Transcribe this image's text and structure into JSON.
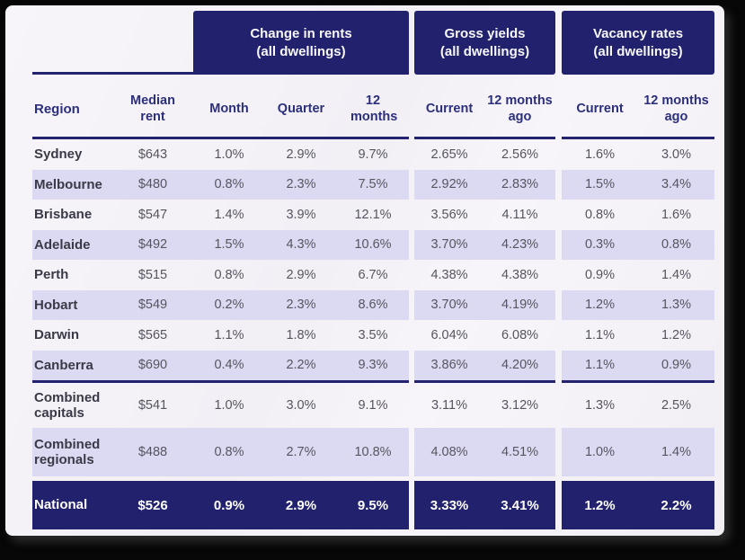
{
  "chart_data": {
    "type": "table",
    "column_groups": [
      {
        "title": "Change in rents",
        "subtitle": "(all dwellings)"
      },
      {
        "title": "Gross yields",
        "subtitle": "(all dwellings)"
      },
      {
        "title": "Vacancy rates",
        "subtitle": "(all dwellings)"
      }
    ],
    "columns": [
      "Region",
      "Median rent",
      "Month",
      "Quarter",
      "12 months",
      "Current",
      "12 months ago",
      "Current",
      "12 months ago"
    ],
    "rows": [
      {
        "region": "Sydney",
        "values": [
          "$643",
          "1.0%",
          "2.9%",
          "9.7%",
          "2.65%",
          "2.56%",
          "1.6%",
          "3.0%"
        ]
      },
      {
        "region": "Melbourne",
        "values": [
          "$480",
          "0.8%",
          "2.3%",
          "7.5%",
          "2.92%",
          "2.83%",
          "1.5%",
          "3.4%"
        ]
      },
      {
        "region": "Brisbane",
        "values": [
          "$547",
          "1.4%",
          "3.9%",
          "12.1%",
          "3.56%",
          "4.11%",
          "0.8%",
          "1.6%"
        ]
      },
      {
        "region": "Adelaide",
        "values": [
          "$492",
          "1.5%",
          "4.3%",
          "10.6%",
          "3.70%",
          "4.23%",
          "0.3%",
          "0.8%"
        ]
      },
      {
        "region": "Perth",
        "values": [
          "$515",
          "0.8%",
          "2.9%",
          "6.7%",
          "4.38%",
          "4.38%",
          "0.9%",
          "1.4%"
        ]
      },
      {
        "region": "Hobart",
        "values": [
          "$549",
          "0.2%",
          "2.3%",
          "8.6%",
          "3.70%",
          "4.19%",
          "1.2%",
          "1.3%"
        ]
      },
      {
        "region": "Darwin",
        "values": [
          "$565",
          "1.1%",
          "1.8%",
          "3.5%",
          "6.04%",
          "6.08%",
          "1.1%",
          "1.2%"
        ]
      },
      {
        "region": "Canberra",
        "values": [
          "$690",
          "0.4%",
          "2.2%",
          "9.3%",
          "3.86%",
          "4.20%",
          "1.1%",
          "0.9%"
        ]
      },
      {
        "region": "Combined capitals",
        "values": [
          "$541",
          "1.0%",
          "3.0%",
          "9.1%",
          "3.11%",
          "3.12%",
          "1.3%",
          "2.5%"
        ]
      },
      {
        "region": "Combined regionals",
        "values": [
          "$488",
          "0.8%",
          "2.7%",
          "10.8%",
          "4.08%",
          "4.51%",
          "1.0%",
          "1.4%"
        ]
      }
    ],
    "summary_row": {
      "region": "National",
      "values": [
        "$526",
        "0.9%",
        "2.9%",
        "9.5%",
        "3.33%",
        "3.41%",
        "1.2%",
        "2.2%"
      ]
    },
    "layout_hints": {
      "shaded_rows": [
        1,
        3,
        5,
        7,
        9
      ],
      "grid": "horizontal rules only",
      "legend_position": "none"
    },
    "colors": {
      "navy": "#21216e",
      "row_stripe": "#dcdaf2",
      "header_text": "#2c2f7c",
      "value_text": "#56555f",
      "background": "#f4f2f6"
    }
  }
}
